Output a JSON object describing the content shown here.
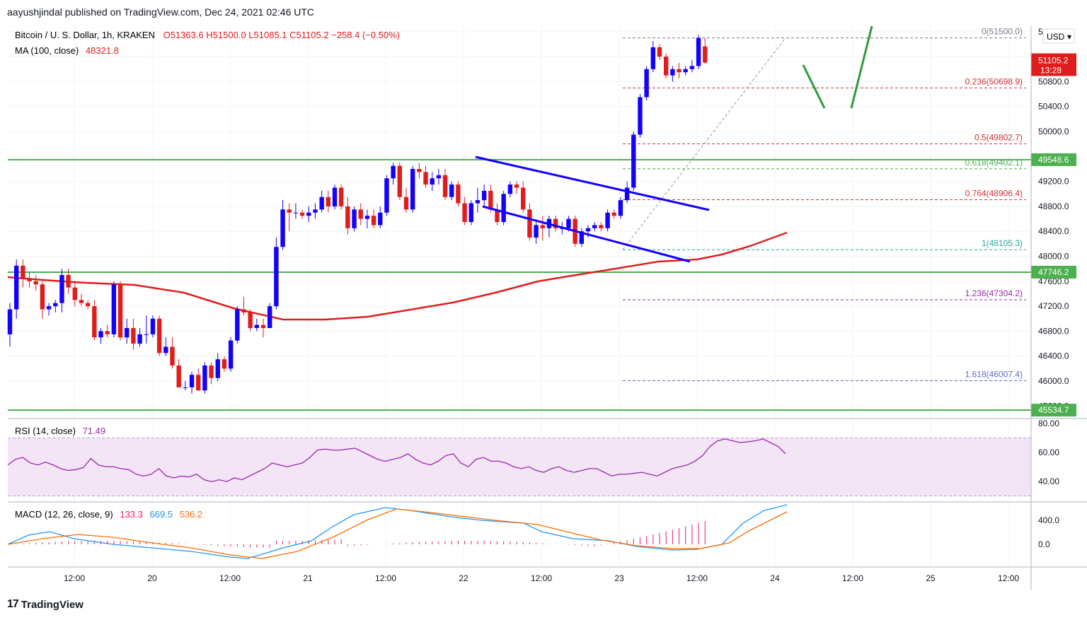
{
  "header": {
    "publisher_line": "aayushjindal published on TradingView.com, Dec 24, 2021 02:46 UTC"
  },
  "legend": {
    "symbol": "Bitcoin / U. S. Dollar, 1h, KRAKEN",
    "ohlc": "O51363.6  H51500.0  L51085.1  C51105.2  −258.4 (−0.50%)",
    "ma_label": "MA (100, close)",
    "ma_value": "48321.8",
    "rsi_label": "RSI (14, close)",
    "rsi_value": "71.49",
    "macd_label": "MACD (12, 26, close, 9)",
    "macd_hist": "133.3",
    "macd_line": "669.5",
    "macd_signal": "536.2"
  },
  "price_axis": {
    "currency": "USD",
    "ticks": [
      "51600.0",
      "51200.0",
      "50800.0",
      "50400.0",
      "50000.0",
      "49600.0",
      "49200.0",
      "48800.0",
      "48400.0",
      "48000.0",
      "47600.0",
      "47200.0",
      "46800.0",
      "46400.0",
      "46000.0",
      "45600.0"
    ],
    "current_price": "51105.2",
    "countdown": "13:28",
    "levels": [
      {
        "label": "49548.6",
        "value": 49548.6
      },
      {
        "label": "47746.2",
        "value": 47746.2
      },
      {
        "label": "45534.7",
        "value": 45534.7
      }
    ]
  },
  "time_axis": {
    "ticks": [
      "12:00",
      "20",
      "12:00",
      "21",
      "12:00",
      "22",
      "12:00",
      "23",
      "12:00",
      "24",
      "12:00",
      "25",
      "12:00"
    ]
  },
  "rsi_axis": {
    "ticks": [
      "80.00",
      "60.00",
      "40.00"
    ]
  },
  "macd_axis": {
    "ticks": [
      "400.0",
      "0.0"
    ]
  },
  "fib_levels": [
    {
      "label": "0(51500.0)",
      "value": 51500.0,
      "color": "#787b86"
    },
    {
      "label": "0.236(50698.9)",
      "value": 50698.9,
      "color": "#d32f2f"
    },
    {
      "label": "0.5(49802.7)",
      "value": 49802.7,
      "color": "#d32f2f"
    },
    {
      "label": "0.618(49402.1)",
      "value": 49402.1,
      "color": "#4caf50"
    },
    {
      "label": "0.764(48906.4)",
      "value": 48906.4,
      "color": "#d32f2f"
    },
    {
      "label": "1(48105.3)",
      "value": 48105.3,
      "color": "#26a69a"
    },
    {
      "label": "1.236(47304.2)",
      "value": 47304.2,
      "color": "#9c27b0"
    },
    {
      "label": "1.618(46007.4)",
      "value": 46007.4,
      "color": "#5c6bc0"
    }
  ],
  "footer": {
    "brand": "TradingView"
  },
  "colors": {
    "up": "#1400ff",
    "down": "#e01d1d",
    "ma": "#e01d1d",
    "level": "#4caf50",
    "channel": "#1400ff",
    "rsi": "#9c27b0",
    "macd": "#2196f3",
    "signal": "#ff6d00"
  },
  "chart_data": {
    "type": "candlestick",
    "interval": "1h",
    "candles": [
      [
        46750,
        47250,
        46550,
        47150
      ],
      [
        47150,
        47950,
        47000,
        47850
      ],
      [
        47850,
        47950,
        47500,
        47650
      ],
      [
        47650,
        47750,
        47500,
        47600
      ],
      [
        47600,
        47700,
        47450,
        47550
      ],
      [
        47550,
        47600,
        47000,
        47150
      ],
      [
        47150,
        47250,
        47050,
        47200
      ],
      [
        47200,
        47300,
        47100,
        47250
      ],
      [
        47250,
        47800,
        47100,
        47700
      ],
      [
        47700,
        47800,
        47400,
        47500
      ],
      [
        47500,
        47600,
        47200,
        47300
      ],
      [
        47300,
        47400,
        47200,
        47250
      ],
      [
        47250,
        47300,
        47150,
        47200
      ],
      [
        47200,
        47300,
        46650,
        46700
      ],
      [
        46700,
        46850,
        46600,
        46800
      ],
      [
        46800,
        46900,
        46700,
        46750
      ],
      [
        46750,
        47600,
        46700,
        47550
      ],
      [
        47550,
        47600,
        46650,
        46700
      ],
      [
        46700,
        47000,
        46600,
        46850
      ],
      [
        46850,
        47000,
        46500,
        46600
      ],
      [
        46600,
        46850,
        46550,
        46750
      ],
      [
        46750,
        47050,
        46600,
        46750
      ],
      [
        46750,
        47050,
        46700,
        47000
      ],
      [
        47000,
        47050,
        46400,
        46450
      ],
      [
        46450,
        46700,
        46400,
        46550
      ],
      [
        46550,
        46700,
        46200,
        46250
      ],
      [
        46250,
        46350,
        45900,
        45900
      ],
      [
        45900,
        46000,
        45850,
        45900
      ],
      [
        45900,
        46150,
        45800,
        46100
      ],
      [
        46100,
        46200,
        45850,
        45850
      ],
      [
        45850,
        46300,
        45800,
        46250
      ],
      [
        46250,
        46300,
        45950,
        46050
      ],
      [
        46050,
        46450,
        46000,
        46350
      ],
      [
        46350,
        46400,
        46150,
        46200
      ],
      [
        46200,
        46700,
        46150,
        46650
      ],
      [
        46650,
        47200,
        46600,
        47150
      ],
      [
        47150,
        47350,
        47050,
        47100
      ],
      [
        47100,
        47150,
        46800,
        46850
      ],
      [
        46850,
        47000,
        46800,
        46900
      ],
      [
        46900,
        47000,
        46700,
        46850
      ],
      [
        46850,
        47250,
        46850,
        47200
      ],
      [
        47200,
        48300,
        47150,
        48150
      ],
      [
        48150,
        48900,
        48100,
        48750
      ],
      [
        48750,
        48850,
        48400,
        48700
      ],
      [
        48700,
        48850,
        48600,
        48700
      ],
      [
        48700,
        48750,
        48600,
        48650
      ],
      [
        48650,
        48800,
        48550,
        48700
      ],
      [
        48700,
        48850,
        48600,
        48750
      ],
      [
        48750,
        49050,
        48700,
        48950
      ],
      [
        48950,
        49050,
        48700,
        48800
      ],
      [
        48800,
        49150,
        48750,
        49100
      ],
      [
        49100,
        49150,
        48750,
        48800
      ],
      [
        48800,
        48950,
        48350,
        48450
      ],
      [
        48450,
        48800,
        48400,
        48750
      ],
      [
        48750,
        48850,
        48500,
        48600
      ],
      [
        48600,
        48750,
        48450,
        48650
      ],
      [
        48650,
        48750,
        48450,
        48500
      ],
      [
        48500,
        48800,
        48450,
        48700
      ],
      [
        48700,
        49300,
        48650,
        49250
      ],
      [
        49250,
        49500,
        49150,
        49450
      ],
      [
        49450,
        49500,
        48900,
        48950
      ],
      [
        48950,
        49100,
        48700,
        48750
      ],
      [
        48750,
        49450,
        48700,
        49400
      ],
      [
        49400,
        49500,
        49250,
        49350
      ],
      [
        49350,
        49450,
        49100,
        49150
      ],
      [
        49150,
        49350,
        49050,
        49250
      ],
      [
        49250,
        49400,
        49150,
        49300
      ],
      [
        49300,
        49400,
        48900,
        48950
      ],
      [
        48950,
        49200,
        48900,
        49150
      ],
      [
        49150,
        49200,
        48800,
        48850
      ],
      [
        48850,
        48950,
        48500,
        48550
      ],
      [
        48550,
        48900,
        48500,
        48850
      ],
      [
        48850,
        49100,
        48700,
        48900
      ],
      [
        48900,
        49150,
        48800,
        49050
      ],
      [
        49050,
        49150,
        48700,
        48750
      ],
      [
        48750,
        48850,
        48500,
        48550
      ],
      [
        48550,
        49050,
        48500,
        49000
      ],
      [
        49000,
        49200,
        48950,
        49150
      ],
      [
        49150,
        49200,
        49000,
        49100
      ],
      [
        49100,
        49200,
        48700,
        48750
      ],
      [
        48750,
        48850,
        48250,
        48300
      ],
      [
        48300,
        48550,
        48200,
        48500
      ],
      [
        48500,
        48650,
        48250,
        48450
      ],
      [
        48450,
        48650,
        48300,
        48600
      ],
      [
        48600,
        48650,
        48400,
        48450
      ],
      [
        48450,
        48550,
        48350,
        48450
      ],
      [
        48450,
        48650,
        48400,
        48600
      ],
      [
        48600,
        48650,
        48150,
        48200
      ],
      [
        48200,
        48450,
        48150,
        48400
      ],
      [
        48400,
        48500,
        48300,
        48450
      ],
      [
        48450,
        48550,
        48400,
        48500
      ],
      [
        48500,
        48550,
        48400,
        48450
      ],
      [
        48450,
        48750,
        48400,
        48700
      ],
      [
        48700,
        48750,
        48600,
        48650
      ],
      [
        48650,
        48950,
        48600,
        48900
      ],
      [
        48900,
        49200,
        48850,
        49100
      ],
      [
        49100,
        50000,
        49050,
        49950
      ],
      [
        49950,
        50600,
        49900,
        50550
      ],
      [
        50550,
        51050,
        50500,
        51000
      ],
      [
        51000,
        51450,
        50950,
        51350
      ],
      [
        51350,
        51400,
        51150,
        51200
      ],
      [
        51200,
        51250,
        50850,
        50900
      ],
      [
        50900,
        51050,
        50800,
        51000
      ],
      [
        51000,
        51100,
        50850,
        50950
      ],
      [
        50950,
        51050,
        50900,
        51000
      ],
      [
        51000,
        51150,
        50950,
        51050
      ],
      [
        51050,
        51550,
        51000,
        51500
      ],
      [
        51363.6,
        51500,
        51085.1,
        51105.2
      ]
    ],
    "ma100_value": 48321.8,
    "rsi_value": 71.49,
    "macd": {
      "hist": 133.3,
      "macd": 669.5,
      "signal": 536.2
    }
  }
}
